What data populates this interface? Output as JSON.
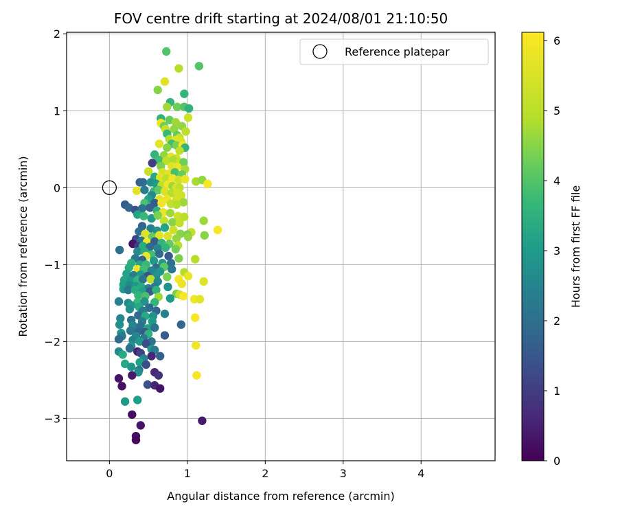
{
  "chart_data": {
    "type": "scatter",
    "title": "FOV centre drift starting at 2024/08/01 21:10:50",
    "xlabel": "Angular distance from reference (arcmin)",
    "ylabel": "Rotation from reference (arcmin)",
    "xlim": [
      -0.55,
      4.95
    ],
    "ylim": [
      -3.55,
      2.02
    ],
    "xticks": [
      0,
      1,
      2,
      3,
      4
    ],
    "yticks": [
      -3,
      -2,
      -1,
      0,
      1,
      2
    ],
    "grid": true,
    "legend": {
      "placement": "top-right",
      "entries": [
        "Reference platepar"
      ]
    },
    "reference_point": {
      "x": 0,
      "y": 0
    },
    "colorbar": {
      "label": "Hours from first FF file",
      "range": [
        0,
        6.12
      ],
      "ticks": [
        0,
        1,
        2,
        3,
        4,
        5,
        6
      ],
      "colormap": "viridis"
    },
    "points": [
      [
        0.73,
        1.77,
        4.0
      ],
      [
        0.89,
        1.55,
        4.9
      ],
      [
        1.15,
        1.58,
        4.0
      ],
      [
        0.71,
        1.38,
        5.6
      ],
      [
        0.62,
        1.27,
        4.5
      ],
      [
        0.96,
        1.22,
        3.6
      ],
      [
        0.78,
        1.11,
        3.6
      ],
      [
        0.74,
        1.05,
        4.7
      ],
      [
        0.87,
        1.05,
        4.3
      ],
      [
        0.96,
        1.05,
        4.0
      ],
      [
        1.02,
        1.03,
        3.5
      ],
      [
        0.66,
        0.9,
        3.5
      ],
      [
        0.77,
        0.88,
        4.2
      ],
      [
        0.85,
        0.85,
        4.7
      ],
      [
        1.01,
        0.91,
        5.3
      ],
      [
        0.66,
        0.84,
        5.9
      ],
      [
        0.7,
        0.8,
        4.3
      ],
      [
        0.93,
        0.8,
        4.6
      ],
      [
        0.72,
        0.76,
        5.2
      ],
      [
        0.83,
        0.76,
        4.6
      ],
      [
        0.98,
        0.73,
        5.0
      ],
      [
        0.74,
        0.7,
        3.7
      ],
      [
        0.87,
        0.68,
        4.1
      ],
      [
        0.9,
        0.65,
        5.2
      ],
      [
        0.77,
        0.63,
        4.9
      ],
      [
        0.85,
        0.62,
        5.6
      ],
      [
        0.92,
        0.6,
        5.5
      ],
      [
        0.64,
        0.57,
        5.7
      ],
      [
        0.8,
        0.57,
        3.8
      ],
      [
        0.86,
        0.55,
        4.4
      ],
      [
        0.94,
        0.55,
        5.9
      ],
      [
        0.74,
        0.52,
        4.5
      ],
      [
        0.97,
        0.52,
        3.6
      ],
      [
        0.9,
        0.48,
        5.1
      ],
      [
        0.58,
        0.43,
        3.6
      ],
      [
        0.7,
        0.42,
        4.6
      ],
      [
        0.79,
        0.4,
        5.7
      ],
      [
        0.86,
        0.38,
        5.3
      ],
      [
        0.63,
        0.36,
        3.8
      ],
      [
        0.73,
        0.35,
        5.0
      ],
      [
        0.82,
        0.36,
        4.8
      ],
      [
        0.9,
        0.33,
        5.2
      ],
      [
        0.95,
        0.33,
        4.3
      ],
      [
        0.55,
        0.32,
        1.0
      ],
      [
        0.66,
        0.28,
        4.4
      ],
      [
        0.8,
        0.28,
        5.6
      ],
      [
        0.87,
        0.27,
        5.8
      ],
      [
        0.97,
        0.24,
        4.8
      ],
      [
        0.5,
        0.21,
        5.2
      ],
      [
        0.68,
        0.2,
        5.4
      ],
      [
        0.76,
        0.18,
        5.7
      ],
      [
        0.84,
        0.2,
        3.9
      ],
      [
        0.93,
        0.17,
        4.2
      ],
      [
        0.58,
        0.14,
        3.3
      ],
      [
        0.65,
        0.13,
        5.6
      ],
      [
        0.73,
        0.12,
        5.0
      ],
      [
        0.81,
        0.12,
        5.9
      ],
      [
        0.89,
        0.1,
        5.3
      ],
      [
        0.97,
        0.11,
        5.8
      ],
      [
        1.11,
        0.08,
        4.8
      ],
      [
        1.19,
        0.1,
        4.6
      ],
      [
        1.26,
        0.05,
        6.0
      ],
      [
        0.39,
        0.07,
        1.7
      ],
      [
        0.43,
        0.07,
        1.9
      ],
      [
        0.53,
        0.07,
        2.8
      ],
      [
        0.6,
        0.05,
        3.0
      ],
      [
        0.67,
        0.03,
        5.1
      ],
      [
        0.75,
        0.04,
        5.9
      ],
      [
        0.81,
        0.02,
        4.7
      ],
      [
        0.86,
        0.0,
        5.5
      ],
      [
        0.9,
        0.0,
        5.0
      ],
      [
        0.35,
        -0.04,
        5.7
      ],
      [
        0.45,
        -0.03,
        2.3
      ],
      [
        0.57,
        -0.05,
        3.6
      ],
      [
        0.63,
        -0.03,
        4.1
      ],
      [
        0.71,
        -0.05,
        5.5
      ],
      [
        0.8,
        -0.07,
        4.9
      ],
      [
        0.87,
        -0.06,
        5.4
      ],
      [
        0.92,
        -0.1,
        5.3
      ],
      [
        0.54,
        -0.1,
        2.6
      ],
      [
        0.64,
        -0.15,
        5.7
      ],
      [
        0.74,
        -0.15,
        5.8
      ],
      [
        0.86,
        -0.15,
        5.4
      ],
      [
        0.95,
        -0.19,
        4.7
      ],
      [
        0.5,
        -0.15,
        3.1
      ],
      [
        0.45,
        -0.2,
        3.9
      ],
      [
        0.58,
        -0.2,
        1.6
      ],
      [
        0.67,
        -0.2,
        5.9
      ],
      [
        0.79,
        -0.21,
        5.1
      ],
      [
        0.86,
        -0.22,
        4.9
      ],
      [
        0.2,
        -0.22,
        1.6
      ],
      [
        0.25,
        -0.26,
        1.8
      ],
      [
        0.33,
        -0.29,
        1.4
      ],
      [
        0.42,
        -0.27,
        2.1
      ],
      [
        0.52,
        -0.26,
        1.7
      ],
      [
        0.61,
        -0.3,
        3.5
      ],
      [
        0.69,
        -0.32,
        5.8
      ],
      [
        0.78,
        -0.33,
        4.7
      ],
      [
        0.88,
        -0.37,
        5.3
      ],
      [
        0.96,
        -0.38,
        5.0
      ],
      [
        0.36,
        -0.35,
        3.2
      ],
      [
        0.44,
        -0.37,
        3.7
      ],
      [
        0.54,
        -0.4,
        3.0
      ],
      [
        0.62,
        -0.36,
        4.4
      ],
      [
        0.7,
        -0.43,
        5.1
      ],
      [
        0.81,
        -0.45,
        4.5
      ],
      [
        0.9,
        -0.46,
        5.1
      ],
      [
        1.05,
        -0.58,
        5.1
      ],
      [
        1.21,
        -0.43,
        4.7
      ],
      [
        1.39,
        -0.55,
        6.0
      ],
      [
        0.42,
        -0.5,
        1.8
      ],
      [
        0.53,
        -0.53,
        2.4
      ],
      [
        0.61,
        -0.56,
        2.8
      ],
      [
        0.71,
        -0.52,
        3.2
      ],
      [
        0.82,
        -0.55,
        5.3
      ],
      [
        0.91,
        -0.6,
        4.5
      ],
      [
        1.0,
        -0.61,
        4.4
      ],
      [
        0.38,
        -0.57,
        2.0
      ],
      [
        0.46,
        -0.6,
        5.6
      ],
      [
        0.55,
        -0.64,
        4.2
      ],
      [
        0.64,
        -0.62,
        5.7
      ],
      [
        0.75,
        -0.63,
        5.5
      ],
      [
        0.86,
        -0.66,
        4.6
      ],
      [
        1.01,
        -0.64,
        4.6
      ],
      [
        1.22,
        -0.62,
        4.5
      ],
      [
        0.34,
        -0.67,
        1.2
      ],
      [
        0.41,
        -0.69,
        2.1
      ],
      [
        0.48,
        -0.71,
        5.9
      ],
      [
        0.58,
        -0.7,
        1.6
      ],
      [
        0.67,
        -0.72,
        3.6
      ],
      [
        0.77,
        -0.73,
        4.2
      ],
      [
        0.88,
        -0.75,
        5.0
      ],
      [
        0.3,
        -0.73,
        0.3
      ],
      [
        0.37,
        -0.76,
        1.0
      ],
      [
        0.43,
        -0.76,
        3.4
      ],
      [
        0.52,
        -0.77,
        1.9
      ],
      [
        0.62,
        -0.79,
        2.5
      ],
      [
        0.72,
        -0.78,
        3.6
      ],
      [
        0.85,
        -0.8,
        4.3
      ],
      [
        0.13,
        -0.81,
        2.0
      ],
      [
        0.36,
        -0.83,
        2.6
      ],
      [
        0.45,
        -0.83,
        3.4
      ],
      [
        0.54,
        -0.87,
        3.8
      ],
      [
        0.64,
        -0.86,
        1.9
      ],
      [
        0.76,
        -0.89,
        1.6
      ],
      [
        0.89,
        -0.92,
        4.4
      ],
      [
        0.47,
        -0.89,
        5.8
      ],
      [
        0.33,
        -0.92,
        2.2
      ],
      [
        0.42,
        -0.94,
        1.7
      ],
      [
        0.57,
        -0.95,
        3.0
      ],
      [
        0.68,
        -0.98,
        2.9
      ],
      [
        0.79,
        -0.98,
        2.0
      ],
      [
        1.1,
        -0.93,
        4.9
      ],
      [
        0.28,
        -0.98,
        3.5
      ],
      [
        0.39,
        -1.0,
        3.2
      ],
      [
        0.47,
        -1.0,
        3.7
      ],
      [
        0.6,
        -1.04,
        2.0
      ],
      [
        0.7,
        -1.03,
        4.1
      ],
      [
        0.8,
        -1.06,
        2.2
      ],
      [
        0.25,
        -1.04,
        3.4
      ],
      [
        0.36,
        -1.06,
        5.9
      ],
      [
        0.44,
        -1.06,
        3.8
      ],
      [
        0.54,
        -1.08,
        2.5
      ],
      [
        0.65,
        -1.09,
        2.9
      ],
      [
        0.96,
        -1.1,
        4.9
      ],
      [
        0.22,
        -1.12,
        3.2
      ],
      [
        0.31,
        -1.14,
        2.3
      ],
      [
        0.4,
        -1.13,
        3.0
      ],
      [
        0.49,
        -1.15,
        1.4
      ],
      [
        0.6,
        -1.14,
        2.8
      ],
      [
        0.74,
        -1.16,
        4.4
      ],
      [
        0.89,
        -1.19,
        6.0
      ],
      [
        1.01,
        -1.15,
        5.8
      ],
      [
        0.19,
        -1.2,
        3.2
      ],
      [
        0.27,
        -1.21,
        3.0
      ],
      [
        0.36,
        -1.2,
        3.6
      ],
      [
        0.43,
        -1.19,
        2.1
      ],
      [
        0.53,
        -1.19,
        5.0
      ],
      [
        0.62,
        -1.22,
        2.6
      ],
      [
        0.93,
        -1.25,
        5.8
      ],
      [
        1.21,
        -1.22,
        5.6
      ],
      [
        0.18,
        -1.26,
        3.1
      ],
      [
        0.26,
        -1.27,
        2.6
      ],
      [
        0.34,
        -1.28,
        2.9
      ],
      [
        0.41,
        -1.29,
        3.3
      ],
      [
        0.5,
        -1.31,
        2.4
      ],
      [
        0.58,
        -1.29,
        2.2
      ],
      [
        0.75,
        -1.29,
        2.8
      ],
      [
        0.18,
        -1.32,
        3.0
      ],
      [
        0.24,
        -1.33,
        2.2
      ],
      [
        0.33,
        -1.33,
        3.4
      ],
      [
        0.42,
        -1.35,
        3.1
      ],
      [
        0.52,
        -1.35,
        1.5
      ],
      [
        0.6,
        -1.33,
        3.5
      ],
      [
        0.86,
        -1.38,
        4.4
      ],
      [
        0.9,
        -1.39,
        5.2
      ],
      [
        0.37,
        -1.4,
        3.6
      ],
      [
        0.46,
        -1.41,
        3.9
      ],
      [
        0.63,
        -1.42,
        4.7
      ],
      [
        0.78,
        -1.44,
        3.0
      ],
      [
        0.95,
        -1.41,
        6.0
      ],
      [
        1.09,
        -1.45,
        5.9
      ],
      [
        1.16,
        -1.45,
        5.7
      ],
      [
        0.12,
        -1.48,
        2.4
      ],
      [
        0.24,
        -1.5,
        2.6
      ],
      [
        0.36,
        -1.49,
        3.7
      ],
      [
        0.45,
        -1.48,
        2.8
      ],
      [
        0.58,
        -1.49,
        3.6
      ],
      [
        0.28,
        -1.53,
        3.0
      ],
      [
        0.38,
        -1.55,
        3.3
      ],
      [
        0.51,
        -1.56,
        1.9
      ],
      [
        0.26,
        -1.58,
        2.7
      ],
      [
        0.43,
        -1.6,
        2.3
      ],
      [
        0.6,
        -1.6,
        1.8
      ],
      [
        0.71,
        -1.64,
        2.4
      ],
      [
        0.37,
        -1.66,
        1.9
      ],
      [
        0.46,
        -1.67,
        3.3
      ],
      [
        0.56,
        -1.67,
        2.8
      ],
      [
        1.1,
        -1.69,
        6.0
      ],
      [
        0.14,
        -1.7,
        2.6
      ],
      [
        0.28,
        -1.72,
        2.1
      ],
      [
        0.42,
        -1.74,
        2.3
      ],
      [
        0.55,
        -1.74,
        3.0
      ],
      [
        0.92,
        -1.78,
        1.8
      ],
      [
        0.13,
        -1.78,
        2.7
      ],
      [
        0.3,
        -1.79,
        2.5
      ],
      [
        0.4,
        -1.8,
        2.0
      ],
      [
        0.49,
        -1.83,
        3.2
      ],
      [
        0.58,
        -1.82,
        2.1
      ],
      [
        0.27,
        -1.86,
        2.2
      ],
      [
        0.37,
        -1.87,
        1.8
      ],
      [
        0.46,
        -1.88,
        1.5
      ],
      [
        0.15,
        -1.89,
        2.9
      ],
      [
        0.5,
        -1.9,
        3.5
      ],
      [
        0.71,
        -1.92,
        1.6
      ],
      [
        0.16,
        -1.93,
        2.3
      ],
      [
        0.34,
        -1.93,
        2.6
      ],
      [
        0.44,
        -1.96,
        2.2
      ],
      [
        0.12,
        -1.97,
        1.9
      ],
      [
        0.3,
        -1.98,
        2.4
      ],
      [
        0.39,
        -2.0,
        3.0
      ],
      [
        0.54,
        -2.0,
        2.1
      ],
      [
        0.47,
        -2.03,
        1.3
      ],
      [
        1.11,
        -2.05,
        5.9
      ],
      [
        0.28,
        -2.06,
        2.8
      ],
      [
        0.26,
        -2.09,
        2.0
      ],
      [
        0.54,
        -2.1,
        3.0
      ],
      [
        0.58,
        -2.11,
        2.3
      ],
      [
        0.36,
        -2.13,
        0.5
      ],
      [
        0.12,
        -2.13,
        2.6
      ],
      [
        0.4,
        -2.15,
        1.1
      ],
      [
        0.17,
        -2.17,
        3.3
      ],
      [
        0.65,
        -2.19,
        1.7
      ],
      [
        0.54,
        -2.19,
        0.6
      ],
      [
        0.44,
        -2.22,
        2.5
      ],
      [
        0.39,
        -2.27,
        3.1
      ],
      [
        0.2,
        -2.29,
        3.3
      ],
      [
        0.47,
        -2.3,
        1.3
      ],
      [
        0.28,
        -2.33,
        2.9
      ],
      [
        0.38,
        -2.37,
        2.2
      ],
      [
        0.58,
        -2.4,
        0.6
      ],
      [
        0.37,
        -2.4,
        2.7
      ],
      [
        0.63,
        -2.44,
        0.8
      ],
      [
        1.12,
        -2.44,
        6.0
      ],
      [
        0.29,
        -2.44,
        0.4
      ],
      [
        0.12,
        -2.48,
        0.3
      ],
      [
        0.16,
        -2.58,
        0.2
      ],
      [
        0.49,
        -2.56,
        1.4
      ],
      [
        0.58,
        -2.57,
        0.6
      ],
      [
        0.65,
        -2.61,
        0.3
      ],
      [
        0.36,
        -2.76,
        3.1
      ],
      [
        0.2,
        -2.78,
        3.0
      ],
      [
        0.29,
        -2.95,
        0.2
      ],
      [
        1.19,
        -3.03,
        0.4
      ],
      [
        0.4,
        -3.09,
        0.3
      ],
      [
        0.34,
        -3.23,
        0.2
      ],
      [
        0.34,
        -3.28,
        0.1
      ]
    ]
  }
}
